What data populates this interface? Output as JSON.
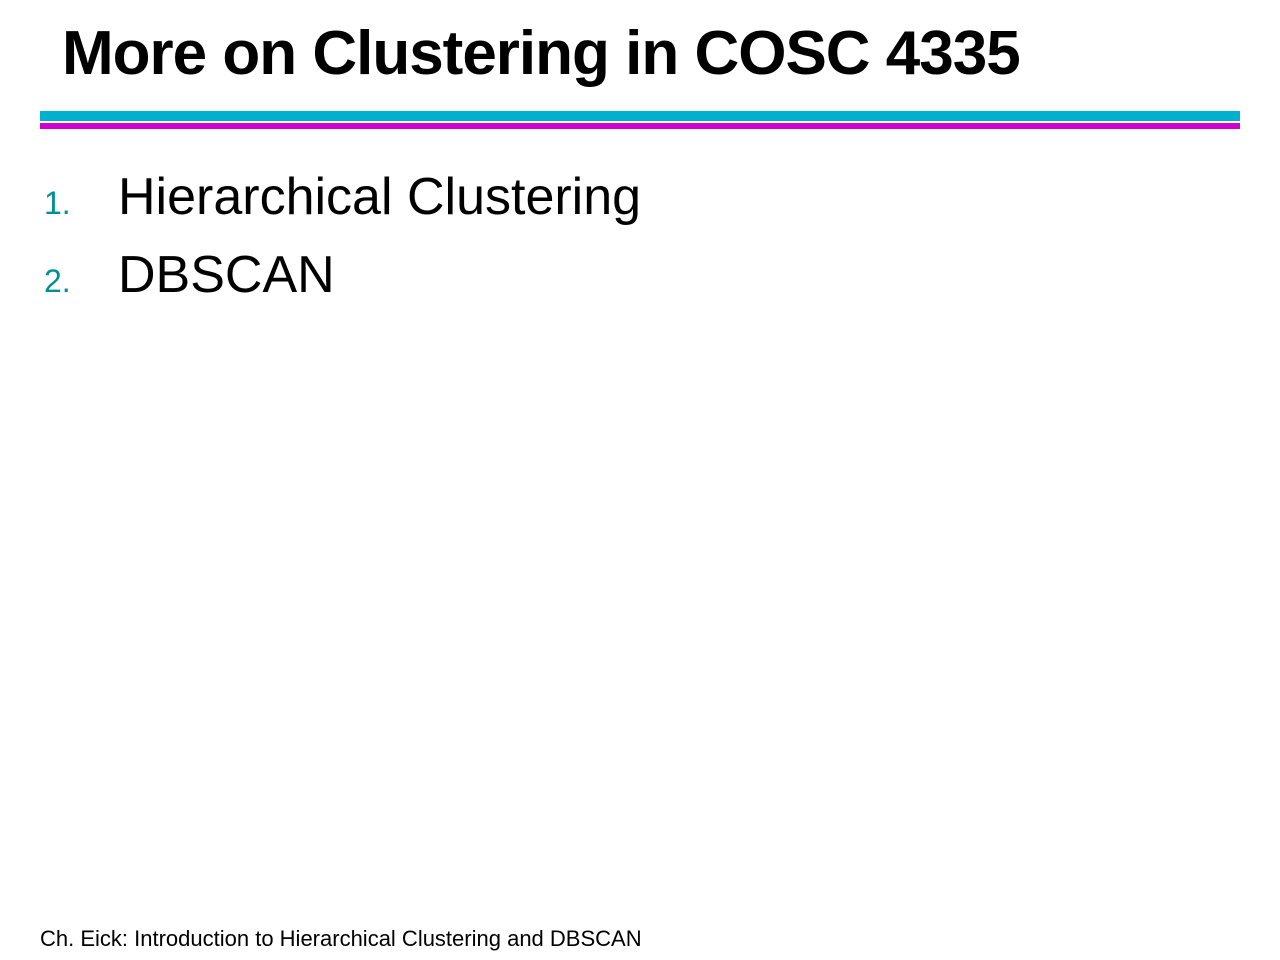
{
  "slide": {
    "title": "More on Clustering in COSC 4335",
    "rules": {
      "top_color": "#00b0d0",
      "bottom_color": "#d000d0"
    },
    "list": {
      "items": [
        {
          "number": "1.",
          "text": "Hierarchical Clustering"
        },
        {
          "number": "2.",
          "text": "DBSCAN"
        }
      ],
      "number_color": "#009090",
      "text_color": "#000000",
      "number_fontsize": 32,
      "text_fontsize": 52
    },
    "footer": "Ch. Eick: Introduction to Hierarchical Clustering and DBSCAN",
    "background_color": "#ffffff",
    "title_fontsize": 62,
    "title_color": "#000000",
    "footer_fontsize": 22
  }
}
